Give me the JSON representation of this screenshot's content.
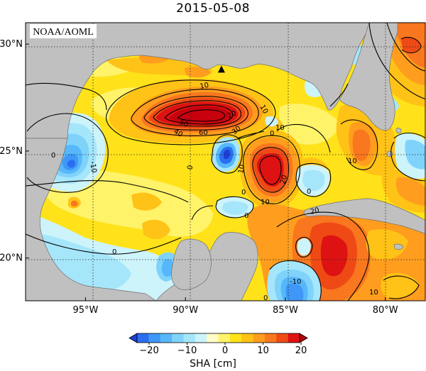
{
  "title": "2015-05-08",
  "credit": "NOAA/AOML",
  "lat_labels": [
    {
      "lat": 30,
      "label": "30°N"
    },
    {
      "lat": 25,
      "label": "25°N"
    },
    {
      "lat": 20,
      "label": "20°N"
    }
  ],
  "lon_labels": [
    {
      "lon": -95,
      "label": "95°W"
    },
    {
      "lon": -90,
      "label": "90°W"
    },
    {
      "lon": -85,
      "label": "85°W"
    },
    {
      "lon": -80,
      "label": "80°W"
    }
  ],
  "extent": {
    "lon_min": -98,
    "lon_max": -78,
    "lat_min": 18,
    "lat_max": 31
  },
  "colorbar": {
    "label": "SHA [cm]",
    "min": -25,
    "max": 25,
    "ticks": [
      {
        "value": -20,
        "label": "−20"
      },
      {
        "value": -10,
        "label": "−10"
      },
      {
        "value": 0,
        "label": "0"
      },
      {
        "value": 10,
        "label": "10"
      },
      {
        "value": 20,
        "label": "20"
      }
    ],
    "colors": [
      "#1e3fd6",
      "#2b6ef0",
      "#3f97f7",
      "#56b8fb",
      "#7fd3fb",
      "#a6e6fb",
      "#cdf3fb",
      "#fffcc8",
      "#fff36a",
      "#ffe21a",
      "#ffc216",
      "#ff9d1e",
      "#f9771e",
      "#ef4a16",
      "#de1212",
      "#b5000a"
    ]
  },
  "contour_labels": [
    "10",
    "20",
    "30",
    "40",
    "50",
    "0",
    "-10",
    "60",
    "-20"
  ],
  "marker": {
    "lon": -88.2,
    "lat": 28.8,
    "symbol": "▲"
  }
}
